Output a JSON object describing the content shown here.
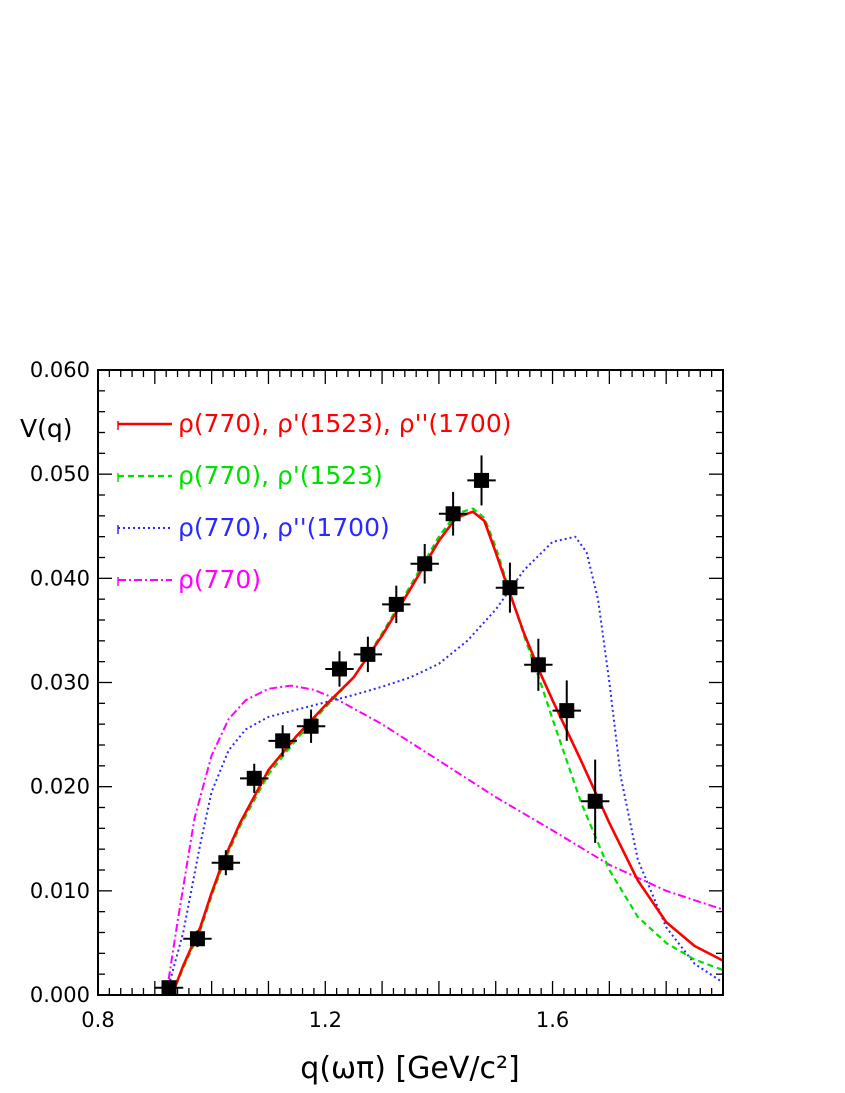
{
  "chart_data": {
    "type": "line",
    "ylabel": "V(q)",
    "xlabel": "q(ωπ) [GeV/c²]",
    "xlim": [
      0.8,
      1.9
    ],
    "ylim": [
      0.0,
      0.06
    ],
    "x_ticks": [
      {
        "value": 0.8,
        "label": "0.8"
      },
      {
        "value": 1.2,
        "label": "1.2"
      },
      {
        "value": 1.6,
        "label": "1.6"
      }
    ],
    "y_ticks": [
      {
        "value": 0.0,
        "label": "0.000"
      },
      {
        "value": 0.01,
        "label": "0.010"
      },
      {
        "value": 0.02,
        "label": "0.020"
      },
      {
        "value": 0.03,
        "label": "0.030"
      },
      {
        "value": 0.04,
        "label": "0.040"
      },
      {
        "value": 0.05,
        "label": "0.050"
      },
      {
        "value": 0.06,
        "label": "0.060"
      }
    ],
    "legend_position": "top-left",
    "data_points": {
      "x": [
        0.925,
        0.975,
        1.025,
        1.075,
        1.125,
        1.175,
        1.225,
        1.275,
        1.325,
        1.375,
        1.425,
        1.475,
        1.525,
        1.575,
        1.625,
        1.675
      ],
      "y": [
        0.0007,
        0.0054,
        0.0127,
        0.0208,
        0.0244,
        0.0258,
        0.0313,
        0.0327,
        0.0375,
        0.0414,
        0.0462,
        0.0494,
        0.0391,
        0.0317,
        0.0273,
        0.0186
      ],
      "yerr": [
        0.0005,
        0.0008,
        0.0012,
        0.0014,
        0.0015,
        0.0016,
        0.0017,
        0.0017,
        0.0018,
        0.0019,
        0.0021,
        0.0024,
        0.0024,
        0.0025,
        0.0029,
        0.004
      ],
      "xerr": 0.025
    },
    "series": [
      {
        "name": "ρ(770), ρ'(1523), ρ''(1700)",
        "color": "#ff0000",
        "style": "solid",
        "x": [
          0.93,
          0.95,
          0.98,
          1.0,
          1.02,
          1.05,
          1.1,
          1.15,
          1.2,
          1.25,
          1.3,
          1.35,
          1.4,
          1.43,
          1.46,
          1.48,
          1.5,
          1.52,
          1.55,
          1.58,
          1.6,
          1.65,
          1.7,
          1.75,
          1.8,
          1.85,
          1.9
        ],
        "y": [
          0.0,
          0.0028,
          0.0065,
          0.0098,
          0.0128,
          0.0165,
          0.0216,
          0.0249,
          0.0278,
          0.0305,
          0.0345,
          0.039,
          0.0436,
          0.0458,
          0.0464,
          0.0455,
          0.0425,
          0.0393,
          0.0347,
          0.0307,
          0.0283,
          0.0225,
          0.0165,
          0.011,
          0.007,
          0.0047,
          0.0033
        ]
      },
      {
        "name": "ρ(770), ρ'(1523)",
        "color": "#00e000",
        "style": "dashed",
        "x": [
          0.93,
          0.95,
          0.98,
          1.0,
          1.02,
          1.05,
          1.1,
          1.15,
          1.2,
          1.25,
          1.3,
          1.35,
          1.4,
          1.43,
          1.46,
          1.48,
          1.5,
          1.52,
          1.55,
          1.58,
          1.6,
          1.65,
          1.7,
          1.75,
          1.8,
          1.85,
          1.9
        ],
        "y": [
          0.0,
          0.0026,
          0.0062,
          0.0095,
          0.0125,
          0.0162,
          0.0212,
          0.0246,
          0.0276,
          0.0305,
          0.0347,
          0.0393,
          0.044,
          0.0462,
          0.0467,
          0.0458,
          0.043,
          0.0395,
          0.0345,
          0.0298,
          0.0265,
          0.0185,
          0.012,
          0.0075,
          0.005,
          0.0034,
          0.0024
        ]
      },
      {
        "name": "ρ(770), ρ''(1700)",
        "color": "#2a2aff",
        "style": "dotted",
        "x": [
          0.92,
          0.95,
          0.98,
          1.0,
          1.03,
          1.06,
          1.1,
          1.15,
          1.2,
          1.25,
          1.3,
          1.35,
          1.4,
          1.45,
          1.5,
          1.55,
          1.6,
          1.64,
          1.66,
          1.68,
          1.7,
          1.72,
          1.75,
          1.8,
          1.85,
          1.9
        ],
        "y": [
          0.0,
          0.006,
          0.0145,
          0.0195,
          0.0235,
          0.0255,
          0.0267,
          0.0274,
          0.0281,
          0.0288,
          0.0296,
          0.0305,
          0.0318,
          0.034,
          0.037,
          0.0408,
          0.0435,
          0.044,
          0.0425,
          0.038,
          0.03,
          0.021,
          0.013,
          0.0065,
          0.003,
          0.0012
        ]
      },
      {
        "name": "ρ(770)",
        "color": "#ff00ff",
        "style": "dashdot",
        "x": [
          0.92,
          0.94,
          0.97,
          1.0,
          1.03,
          1.06,
          1.1,
          1.14,
          1.18,
          1.22,
          1.3,
          1.4,
          1.5,
          1.6,
          1.7,
          1.8,
          1.9
        ],
        "y": [
          0.0,
          0.007,
          0.017,
          0.023,
          0.0265,
          0.0283,
          0.0294,
          0.0297,
          0.0293,
          0.0284,
          0.026,
          0.0225,
          0.019,
          0.0158,
          0.0125,
          0.01,
          0.0082
        ]
      }
    ]
  }
}
